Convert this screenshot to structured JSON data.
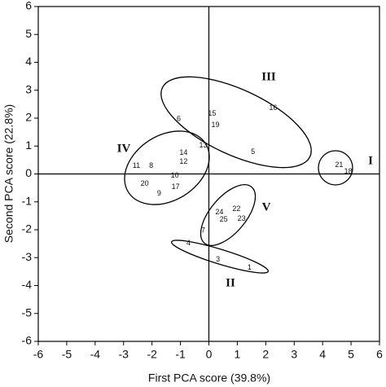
{
  "chart_data": {
    "type": "scatter",
    "x_label": "First PCA score (39.8%)",
    "y_label": "Second PCA score (22.8%)",
    "xlim": [
      -6,
      6
    ],
    "ylim": [
      -6,
      6
    ],
    "xticks": [
      -6,
      -5,
      -4,
      -3,
      -2,
      -1,
      0,
      1,
      2,
      3,
      4,
      5,
      6
    ],
    "yticks": [
      -6,
      -5,
      -4,
      -3,
      -2,
      -1,
      0,
      1,
      2,
      3,
      4,
      5,
      6
    ],
    "points": [
      {
        "label": "16",
        "x": 2.26,
        "y": 2.36
      },
      {
        "label": "15",
        "x": 0.11,
        "y": 2.16
      },
      {
        "label": "19",
        "x": 0.23,
        "y": 1.75
      },
      {
        "label": "6",
        "x": -1.06,
        "y": 1.96
      },
      {
        "label": "13",
        "x": -0.2,
        "y": 1.02
      },
      {
        "label": "14",
        "x": -0.89,
        "y": 0.76
      },
      {
        "label": "12",
        "x": -0.89,
        "y": 0.44
      },
      {
        "label": "5",
        "x": 1.55,
        "y": 0.79
      },
      {
        "label": "11",
        "x": -2.55,
        "y": 0.29
      },
      {
        "label": "8",
        "x": -2.03,
        "y": 0.29
      },
      {
        "label": "20",
        "x": -2.26,
        "y": -0.35
      },
      {
        "label": "10",
        "x": -1.2,
        "y": -0.06
      },
      {
        "label": "9",
        "x": -1.75,
        "y": -0.7
      },
      {
        "label": "17",
        "x": -1.17,
        "y": -0.47
      },
      {
        "label": "21",
        "x": 4.58,
        "y": 0.32
      },
      {
        "label": "18",
        "x": 4.9,
        "y": 0.09
      },
      {
        "label": "24",
        "x": 0.37,
        "y": -1.37
      },
      {
        "label": "22",
        "x": 0.97,
        "y": -1.26
      },
      {
        "label": "25",
        "x": 0.52,
        "y": -1.64
      },
      {
        "label": "23",
        "x": 1.15,
        "y": -1.61
      },
      {
        "label": "7",
        "x": -0.2,
        "y": -2.04
      },
      {
        "label": "4",
        "x": -0.72,
        "y": -2.48
      },
      {
        "label": "3",
        "x": 0.32,
        "y": -3.07
      },
      {
        "label": "1",
        "x": 1.43,
        "y": -3.36
      }
    ],
    "groups": [
      "I",
      "II",
      "III",
      "IV",
      "V"
    ]
  }
}
